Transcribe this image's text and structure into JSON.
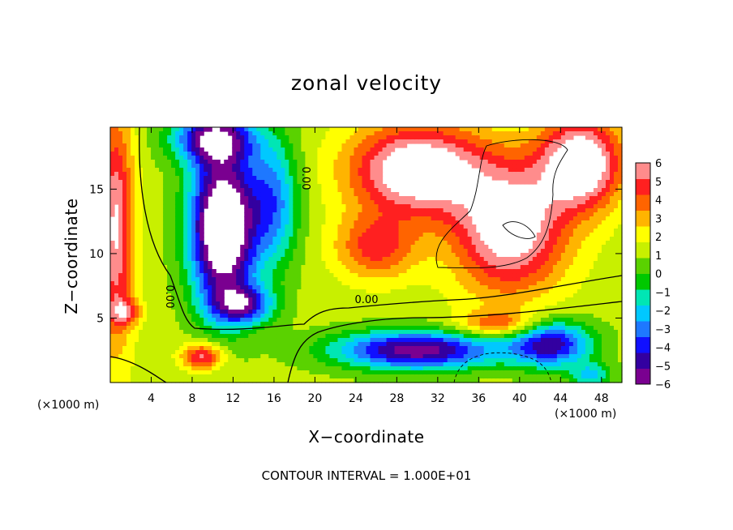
{
  "chart_data": {
    "type": "heatmap",
    "title": "zonal velocity",
    "xlabel": "X−coordinate",
    "ylabel": "Z−coordinate",
    "x_unit": "(×1000 m)",
    "x_ticks": [
      4,
      8,
      12,
      16,
      20,
      24,
      28,
      32,
      36,
      40,
      44,
      48
    ],
    "y_ticks": [
      5,
      10,
      15
    ],
    "xlim": [
      0,
      50
    ],
    "ylim": [
      0,
      19.8
    ],
    "colorbar": {
      "ticks": [
        6,
        5,
        4,
        3,
        2,
        1,
        0,
        -1,
        -2,
        -3,
        -4,
        -5,
        -6
      ],
      "range": [
        -6,
        6
      ],
      "colors": [
        "#7a0090",
        "#3300a0",
        "#1010ff",
        "#1e78ff",
        "#00c8ff",
        "#00e6b4",
        "#00c800",
        "#5ad200",
        "#c8f000",
        "#ffff00",
        "#ffb400",
        "#ff6400",
        "#ff2020",
        "#ff8c8c"
      ]
    },
    "contour_labels": [
      "0.00",
      "0.00",
      "0.00"
    ],
    "footnote": "CONTOUR INTERVAL = 1.000E+01",
    "legend": "colorbar right"
  }
}
